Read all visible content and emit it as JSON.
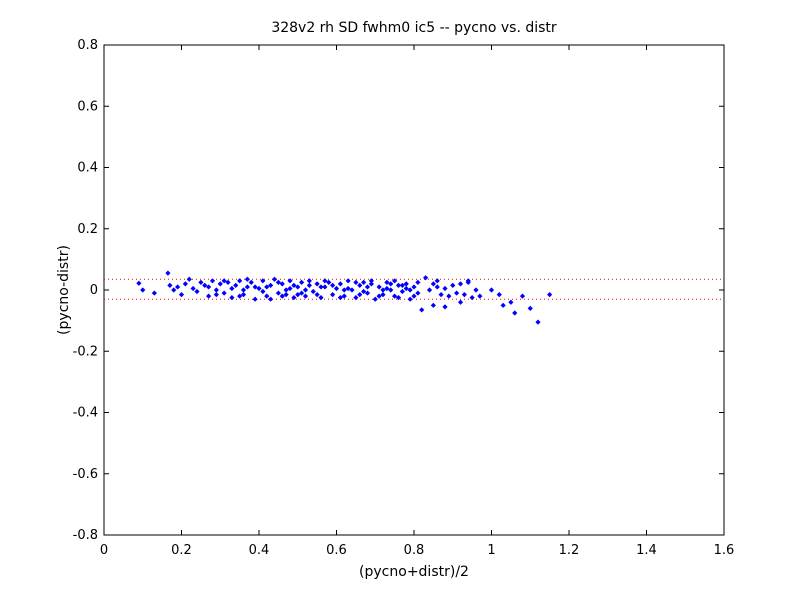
{
  "chart_data": {
    "type": "scatter",
    "title": "328v2 rh SD fwhm0 ic5 -- pycno vs. distr",
    "xlabel": "(pycno+distr)/2",
    "ylabel": "(pycno-distr)",
    "xlim": [
      0,
      1.6
    ],
    "ylim": [
      -0.8,
      0.8
    ],
    "xticks": [
      "0",
      "0.2",
      "0.4",
      "0.6",
      "0.8",
      "1",
      "1.2",
      "1.4",
      "1.6"
    ],
    "yticks": [
      "-0.8",
      "-0.6",
      "-0.4",
      "-0.2",
      "0",
      "0.2",
      "0.4",
      "0.6",
      "0.8"
    ],
    "grid": false,
    "marker_color": "#0000ff",
    "reference_line_color": "#ff0000",
    "reference_lines_y": [
      0.035,
      -0.03
    ],
    "series": [
      {
        "points": [
          [
            0.09,
            0.022
          ],
          [
            0.1,
            0.0
          ],
          [
            0.13,
            -0.01
          ],
          [
            0.165,
            0.055
          ],
          [
            0.17,
            0.015
          ],
          [
            0.18,
            0.0
          ],
          [
            0.19,
            0.01
          ],
          [
            0.2,
            -0.015
          ],
          [
            0.21,
            0.02
          ],
          [
            0.22,
            0.035
          ],
          [
            0.23,
            0.005
          ],
          [
            0.24,
            -0.005
          ],
          [
            0.25,
            0.025
          ],
          [
            0.26,
            0.015
          ],
          [
            0.27,
            -0.02
          ],
          [
            0.28,
            0.03
          ],
          [
            0.29,
            0.0
          ],
          [
            0.3,
            0.02
          ],
          [
            0.31,
            -0.01
          ],
          [
            0.32,
            0.025
          ],
          [
            0.33,
            -0.025
          ],
          [
            0.34,
            0.015
          ],
          [
            0.35,
            0.03
          ],
          [
            0.36,
            -0.015
          ],
          [
            0.37,
            0.01
          ],
          [
            0.38,
            0.025
          ],
          [
            0.39,
            -0.03
          ],
          [
            0.4,
            0.005
          ],
          [
            0.41,
            0.03
          ],
          [
            0.42,
            -0.02
          ],
          [
            0.43,
            0.015
          ],
          [
            0.44,
            0.035
          ],
          [
            0.45,
            -0.01
          ],
          [
            0.46,
            0.02
          ],
          [
            0.47,
            0.0
          ],
          [
            0.48,
            0.03
          ],
          [
            0.49,
            -0.025
          ],
          [
            0.5,
            0.01
          ],
          [
            0.51,
            0.025
          ],
          [
            0.52,
            -0.02
          ],
          [
            0.53,
            0.015
          ],
          [
            0.54,
            -0.005
          ],
          [
            0.55,
            0.02
          ],
          [
            0.56,
            -0.025
          ],
          [
            0.57,
            0.01
          ],
          [
            0.58,
            0.025
          ],
          [
            0.59,
            -0.015
          ],
          [
            0.6,
            0.005
          ],
          [
            0.61,
            0.02
          ],
          [
            0.62,
            -0.02
          ],
          [
            0.63,
            0.03
          ],
          [
            0.64,
            0.0
          ],
          [
            0.65,
            -0.025
          ],
          [
            0.66,
            0.015
          ],
          [
            0.67,
            0.025
          ],
          [
            0.68,
            -0.01
          ],
          [
            0.69,
            0.02
          ],
          [
            0.7,
            -0.03
          ],
          [
            0.71,
            0.01
          ],
          [
            0.72,
            -0.015
          ],
          [
            0.73,
            0.025
          ],
          [
            0.74,
            0.0
          ],
          [
            0.75,
            -0.02
          ],
          [
            0.76,
            0.015
          ],
          [
            0.77,
            -0.005
          ],
          [
            0.78,
            0.02
          ],
          [
            0.79,
            -0.03
          ],
          [
            0.8,
            0.01
          ],
          [
            0.81,
            -0.01
          ],
          [
            0.82,
            -0.065
          ],
          [
            0.83,
            0.04
          ],
          [
            0.84,
            0.0
          ],
          [
            0.85,
            0.02
          ],
          [
            0.86,
            0.01
          ],
          [
            0.87,
            -0.015
          ],
          [
            0.88,
            0.005
          ],
          [
            0.89,
            -0.02
          ],
          [
            0.9,
            0.015
          ],
          [
            0.91,
            -0.01
          ],
          [
            0.92,
            0.02
          ],
          [
            0.93,
            -0.015
          ],
          [
            0.94,
            0.025
          ],
          [
            0.95,
            -0.025
          ],
          [
            0.96,
            0.0
          ],
          [
            0.97,
            -0.02
          ],
          [
            1.0,
            0.0
          ],
          [
            1.02,
            -0.015
          ],
          [
            1.03,
            -0.05
          ],
          [
            1.05,
            -0.04
          ],
          [
            1.06,
            -0.075
          ],
          [
            1.08,
            -0.02
          ],
          [
            1.1,
            -0.06
          ],
          [
            1.12,
            -0.105
          ],
          [
            1.15,
            -0.015
          ],
          [
            0.27,
            0.01
          ],
          [
            0.29,
            -0.015
          ],
          [
            0.31,
            0.03
          ],
          [
            0.33,
            0.005
          ],
          [
            0.35,
            -0.02
          ],
          [
            0.37,
            0.035
          ],
          [
            0.39,
            0.01
          ],
          [
            0.41,
            -0.005
          ],
          [
            0.43,
            -0.03
          ],
          [
            0.45,
            0.025
          ],
          [
            0.47,
            -0.015
          ],
          [
            0.49,
            0.015
          ],
          [
            0.51,
            -0.01
          ],
          [
            0.53,
            0.03
          ],
          [
            0.55,
            -0.015
          ],
          [
            0.57,
            0.03
          ],
          [
            0.59,
            0.015
          ],
          [
            0.61,
            -0.025
          ],
          [
            0.63,
            0.005
          ],
          [
            0.65,
            0.025
          ],
          [
            0.67,
            -0.005
          ],
          [
            0.69,
            0.03
          ],
          [
            0.71,
            -0.02
          ],
          [
            0.73,
            0.005
          ],
          [
            0.75,
            0.03
          ],
          [
            0.77,
            0.015
          ],
          [
            0.79,
            0.0
          ],
          [
            0.81,
            0.025
          ],
          [
            0.85,
            -0.05
          ],
          [
            0.88,
            -0.055
          ],
          [
            0.92,
            -0.04
          ],
          [
            0.94,
            0.03
          ],
          [
            0.36,
            0.0
          ],
          [
            0.42,
            0.01
          ],
          [
            0.46,
            -0.02
          ],
          [
            0.48,
            0.005
          ],
          [
            0.5,
            -0.015
          ],
          [
            0.52,
            0.0
          ],
          [
            0.56,
            0.01
          ],
          [
            0.62,
            0.0
          ],
          [
            0.66,
            -0.015
          ],
          [
            0.68,
            0.01
          ],
          [
            0.72,
            0.0
          ],
          [
            0.74,
            0.02
          ],
          [
            0.76,
            -0.025
          ],
          [
            0.78,
            0.005
          ],
          [
            0.8,
            -0.02
          ],
          [
            0.86,
            0.03
          ]
        ]
      }
    ]
  }
}
